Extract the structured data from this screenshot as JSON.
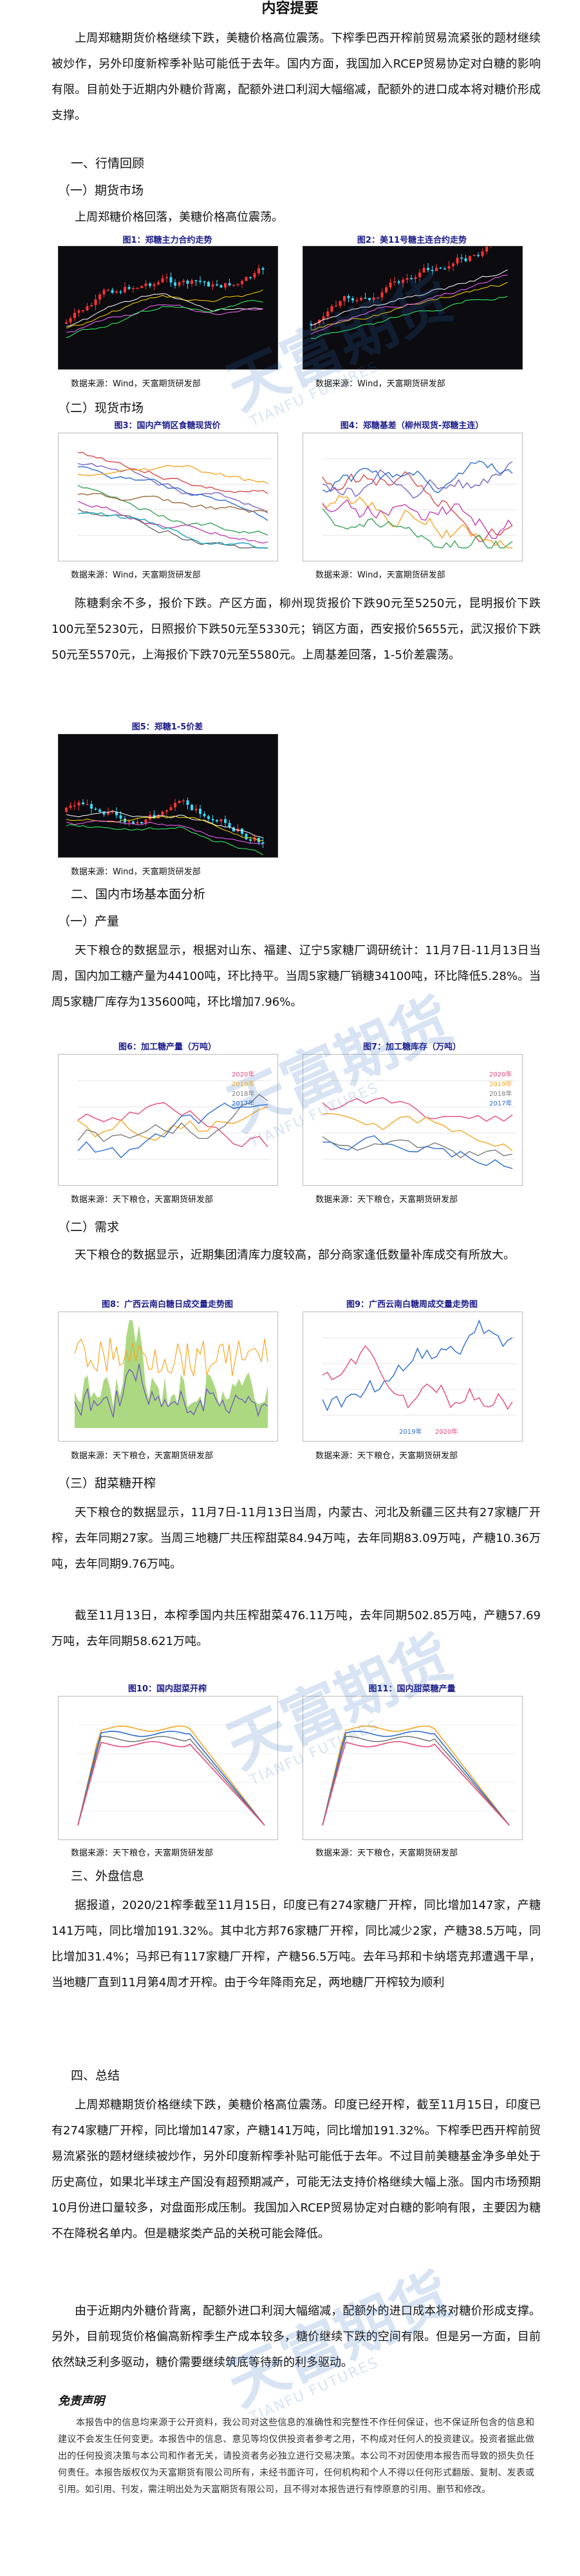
{
  "title": "内容提要",
  "summary": [
    "上周郑糖期货价格继续下跌，美糖价格高位震荡。下榨季巴西开榨前贸易流紧张的题材继续被炒作，另外印度新榨季补贴可能低于去年。国内方面，我国加入RCEP贸易协定对白糖的影响有限。目前处于近期内外糖价背离，配额外进口利润大幅缩减，配额外的进口成本将对糖价形成支撑。"
  ],
  "sections": {
    "s1": "一、行情回顾",
    "s1_1": "（一）期货市场",
    "s1_1_text": "上周郑糖价格回落，美糖价格高位震荡。",
    "s1_2": "（二）现货市场",
    "s1_2_text": "陈糖剩余不多，报价下跌。产区方面，柳州现货报价下跌90元至5250元，昆明报价下跌100元至5230元，日照报价下跌50元至5330元；销区方面，西安报价5655元，武汉报价下跌50元至5570元，上海报价下跌70元至5580元。上周基差回落，1-5价差震荡。",
    "s2": "二、国内市场基本面分析",
    "s2_1": "（一）产量",
    "s2_1_text": "天下粮仓的数据显示，根据对山东、福建、辽宁5家糖厂调研统计：11月7日-11月13日当周，国内加工糖产量为44100吨，环比持平。当周5家糖厂销糖34100吨，环比降低5.28%。当周5家糖厂库存为135600吨，环比增加7.96%。",
    "s2_2": "（二）需求",
    "s2_2_text": "天下粮仓的数据显示，近期集团清库力度较高，部分商家逢低数量补库成交有所放大。",
    "s2_3": "（三）甜菜糖开榨",
    "s2_3_text1": "天下粮仓的数据显示，11月7日-11月13日当周，内蒙古、河北及新疆三区共有27家糖厂开榨，去年同期27家。当周三地糖厂共压榨甜菜84.94万吨，去年同期83.09万吨，产糖10.36万吨，去年同期9.76万吨。",
    "s2_3_text2": "截至11月13日，本榨季国内共压榨甜菜476.11万吨，去年同期502.85万吨，产糖57.69万吨，去年同期58.621万吨。",
    "s3": "三、外盘信息",
    "s3_text": "据报道，2020/21榨季截至11月15日，印度已有274家糖厂开榨，同比增加147家，产糖141万吨，同比增加191.32%。其中北方邦76家糖厂开榨，同比减少2家，产糖38.5万吨，同比增加31.4%；马邦已有117家糖厂开榨，产糖56.5万吨。去年马邦和卡纳塔克邦遭遇干旱，当地糖厂直到11月第4周才开榨。由于今年降雨充足，两地糖厂开榨较为顺利",
    "s4": "四、总结",
    "s4_text1": "上周郑糖期货价格继续下跌，美糖价格高位震荡。印度已经开榨，截至11月15日，印度已有274家糖厂开榨，同比增加147家，产糖141万吨，同比增加191.32%。下榨季巴西开榨前贸易流紧张的题材继续被炒作，另外印度新榨季补贴可能低于去年。不过目前美糖基金净多单处于历史高位，如果北半球主产国没有超预期减产，可能无法支持价格继续大幅上涨。国内市场预期10月份进口量较多，对盘面形成压制。我国加入RCEP贸易协定对白糖的影响有限，主要因为糖不在降税名单内。但是糖浆类产品的关税可能会降低。",
    "s4_text2": "由于近期内外糖价背离，配额外进口利润大幅缩减，配额外的进口成本将对糖价形成支撑。另外，目前现货价格偏高新榨季生产成本较多，糖价继续下跌的空间有限。但是另一方面，目前依然缺乏利多驱动，糖价需要继续筑底等待新的利多驱动。"
  },
  "figures": {
    "f1": "图1：郑糖主力合约走势",
    "f2": "图2：美11号糖主连合约走势",
    "f3": "图3：国内产销区食糖现货价",
    "f4": "图4：郑糖基差（柳州现货-郑糖主连）",
    "f5": "图5：郑糖1-5价差",
    "f6": "图6：加工糖产量（万吨）",
    "f7": "图7：加工糖库存（万吨）",
    "f8": "图8：广西云南白糖日成交量走势图",
    "f9": "图9：广西云南白糖周成交量走势图",
    "f10": "图10：国内甜菜开榨",
    "f11": "图11：国内甜菜糖产量"
  },
  "sources": {
    "wind": "数据来源：Wind，天富期货研发部",
    "tianxia": "数据来源：天下粮仓，天富期货研发部"
  },
  "legends": {
    "f6": [
      "2020年",
      "2019年",
      "2018年",
      "2017年"
    ],
    "f7": [
      "2020年",
      "2019年",
      "2018年",
      "2017年"
    ],
    "f9": [
      "2019年",
      "2020年"
    ]
  },
  "watermark": {
    "text": "天富期货",
    "sub": "TIANFU FUTURES"
  },
  "disclaimer": {
    "title": "免责声明",
    "text": "本报告中的信息均来源于公开资料，我公司对这些信息的准确性和完整性不作任何保证，也不保证所包含的信息和建议不会发生任何变更。本报告中的信息、意见等均仅供投资者参考之用，不构成对任何人的投资建议。投资者据此做出的任何投资决策与本公司和作者无关，请投资者务必独立进行交易决策。本公司不对因使用本报告而导致的损失负任何责任。本报告版权仅为天富期货有限公司所有，未经书面许可，任何机构和个人不得以任何形式翻版、复制、发表或引用。如引用、刊发，需注明出处为天富期货有限公司，且不得对本报告进行有悖原意的引用、删节和修改。"
  },
  "colors": {
    "dark_bg": "#0b0b10",
    "candle_up": "#ff3333",
    "candle_down": "#33ddff",
    "caption": "#1b1b8a",
    "watermark": "#2f6fbf"
  }
}
